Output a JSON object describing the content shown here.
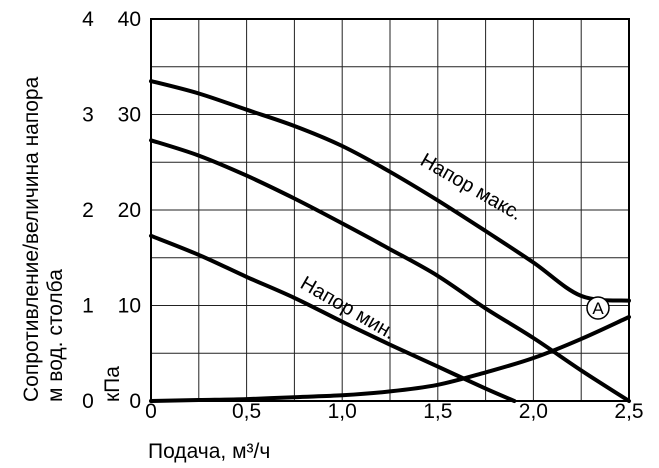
{
  "chart_data": {
    "type": "line",
    "xlabel": "Подача, м³/ч",
    "ylabel_outer": "Сопротивление/величина напора",
    "ylabel_inner": "м вод. столба",
    "ylabel_kpa": "кПа",
    "x_ticks": [
      "0",
      "0,5",
      "1,0",
      "1,5",
      "2,0",
      "2,5"
    ],
    "y_ticks_m": [
      "0",
      "1",
      "2",
      "3",
      "4"
    ],
    "y_ticks_kpa": [
      "0",
      "10",
      "20",
      "30",
      "40"
    ],
    "xlim": [
      0,
      2.5
    ],
    "ylim_kpa": [
      0,
      40
    ],
    "ylim_m": [
      0,
      4
    ],
    "grid": true,
    "series": [
      {
        "name": "Напор макс.",
        "x": [
          0,
          0.25,
          0.5,
          0.75,
          1.0,
          1.25,
          1.5,
          1.75,
          2.0,
          2.25,
          2.5
        ],
        "y": [
          33.5,
          32.2,
          30.5,
          28.8,
          26.7,
          24.0,
          21.0,
          17.8,
          14.5,
          11.0,
          10.5
        ]
      },
      {
        "name": "",
        "x": [
          0,
          0.25,
          0.5,
          0.75,
          1.0,
          1.25,
          1.5,
          1.75,
          2.0,
          2.25,
          2.5
        ],
        "y": [
          27.3,
          25.7,
          23.6,
          21.2,
          18.6,
          15.9,
          13.1,
          9.7,
          6.6,
          3.2,
          0
        ]
      },
      {
        "name": "Напор мин.",
        "x": [
          0,
          0.25,
          0.5,
          0.75,
          1.0,
          1.25,
          1.5,
          1.75,
          1.9
        ],
        "y": [
          17.3,
          15.3,
          13.0,
          10.8,
          8.3,
          5.9,
          3.6,
          1.3,
          0
        ]
      },
      {
        "name": "A",
        "x": [
          0,
          0.25,
          0.5,
          0.75,
          1.0,
          1.25,
          1.5,
          1.75,
          2.0,
          2.25,
          2.5
        ],
        "y": [
          0,
          0.1,
          0.2,
          0.4,
          0.6,
          1.0,
          1.7,
          3.0,
          4.5,
          6.5,
          8.8
        ]
      }
    ],
    "annotations": [
      "Напор макс.",
      "Напор мин.",
      "A"
    ]
  }
}
